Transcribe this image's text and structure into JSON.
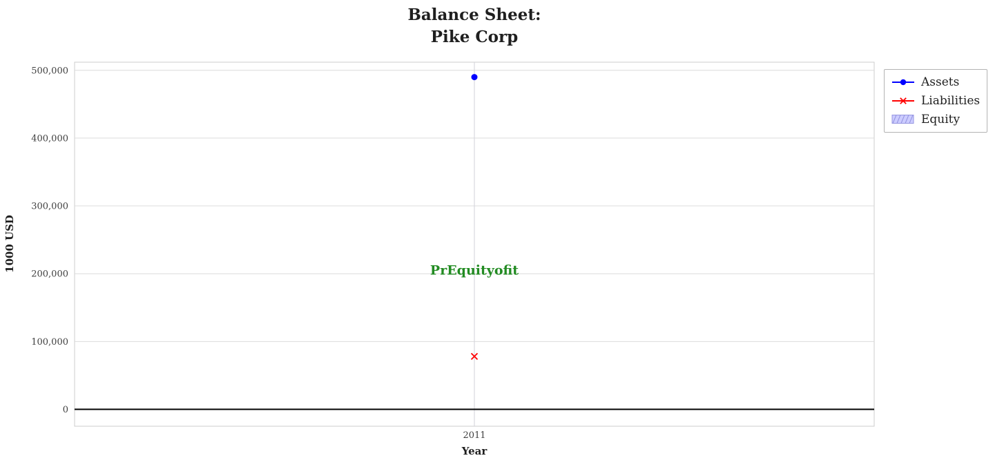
{
  "chart": {
    "title_lines": [
      "Balance Sheet:",
      "Pike Corp"
    ]
  },
  "chart_data": {
    "type": "scatter",
    "title": "Balance Sheet: Pike Corp",
    "xlabel": "Year",
    "ylabel": "1000 USD",
    "x": [
      2011
    ],
    "xtick_labels": [
      "2011"
    ],
    "series": [
      {
        "name": "Assets",
        "values": [
          490000
        ],
        "color": "#0000ff",
        "marker": "circle"
      },
      {
        "name": "Liabilities",
        "values": [
          78000
        ],
        "color": "#ff0000",
        "marker": "x"
      },
      {
        "name": "Equity",
        "values": [],
        "color": "#ccccff",
        "hatch_color": "#9595e0",
        "style": "hatch"
      }
    ],
    "yticks": [
      0,
      100000,
      200000,
      300000,
      400000,
      500000
    ],
    "ytick_labels": [
      "0",
      "100,000",
      "200,000",
      "300,000",
      "400,000",
      "500,000"
    ],
    "ylim": [
      -25000,
      512000
    ],
    "grid": true,
    "zero_line": true,
    "legend_position": "outside-top-right",
    "annotation": {
      "text": "PrEquityofit",
      "x": 2011,
      "y": 206000,
      "color": "#228B22"
    },
    "colors": {
      "gridline": "#dcdcdc",
      "plot_border": "#cccccc",
      "tick_label": "#404040",
      "zero_line": "#000000"
    }
  }
}
